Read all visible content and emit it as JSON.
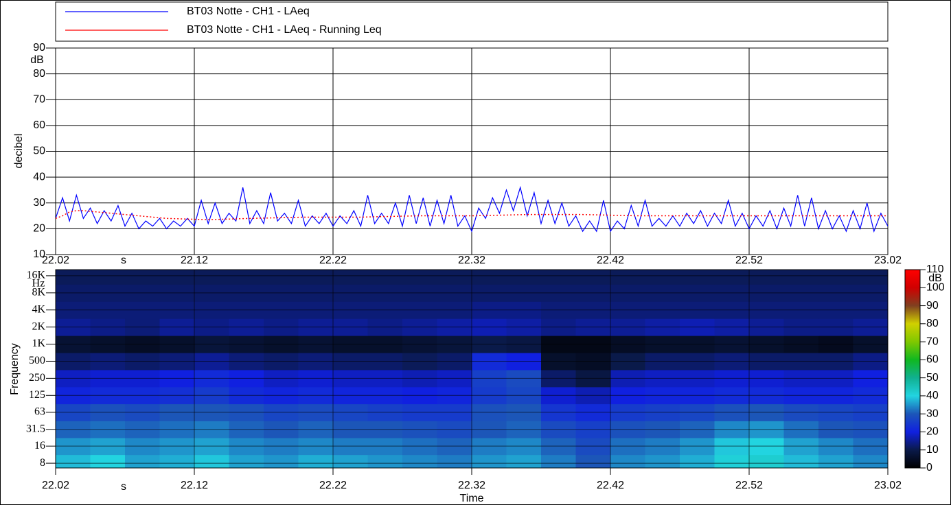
{
  "chart_data": [
    {
      "type": "line",
      "ylabel": "decibel",
      "y_unit": "dB",
      "x_unit": "s",
      "xlim": [
        1322,
        1382
      ],
      "xticks": [
        {
          "value": 1322,
          "label": "22.02"
        },
        {
          "value": 1332,
          "label": "22.12"
        },
        {
          "value": 1342,
          "label": "22.22"
        },
        {
          "value": 1352,
          "label": "22.32"
        },
        {
          "value": 1362,
          "label": "22.42"
        },
        {
          "value": 1372,
          "label": "22.52"
        },
        {
          "value": 1382,
          "label": "23.02"
        }
      ],
      "ylim": [
        10,
        90
      ],
      "yticks": [
        10,
        20,
        30,
        40,
        50,
        60,
        70,
        80,
        90
      ],
      "grid": true,
      "series": [
        {
          "name": "BT03 Notte - CH1 - LAeq",
          "color": "#0000ff",
          "style": "solid",
          "x": [
            1322,
            1322.5,
            1323,
            1323.5,
            1324,
            1324.5,
            1325,
            1325.5,
            1326,
            1326.5,
            1327,
            1327.5,
            1328,
            1328.5,
            1329,
            1329.5,
            1330,
            1330.5,
            1331,
            1331.5,
            1332,
            1332.5,
            1333,
            1333.5,
            1334,
            1334.5,
            1335,
            1335.5,
            1336,
            1336.5,
            1337,
            1337.5,
            1338,
            1338.5,
            1339,
            1339.5,
            1340,
            1340.5,
            1341,
            1341.5,
            1342,
            1342.5,
            1343,
            1343.5,
            1344,
            1344.5,
            1345,
            1345.5,
            1346,
            1346.5,
            1347,
            1347.5,
            1348,
            1348.5,
            1349,
            1349.5,
            1350,
            1350.5,
            1351,
            1351.5,
            1352,
            1352.5,
            1353,
            1353.5,
            1354,
            1354.5,
            1355,
            1355.5,
            1356,
            1356.5,
            1357,
            1357.5,
            1358,
            1358.5,
            1359,
            1359.5,
            1360,
            1360.5,
            1361,
            1361.5,
            1362,
            1362.5,
            1363,
            1363.5,
            1364,
            1364.5,
            1365,
            1365.5,
            1366,
            1366.5,
            1367,
            1367.5,
            1368,
            1368.5,
            1369,
            1369.5,
            1370,
            1370.5,
            1371,
            1371.5,
            1372,
            1372.5,
            1373,
            1373.5,
            1374,
            1374.5,
            1375,
            1375.5,
            1376,
            1376.5,
            1377,
            1377.5,
            1378,
            1378.5,
            1379,
            1379.5,
            1380,
            1380.5,
            1381,
            1381.5,
            1382
          ],
          "values": [
            24,
            32,
            23,
            33,
            24,
            28,
            22,
            27,
            23,
            29,
            21,
            26,
            20,
            23,
            21,
            24,
            20,
            23,
            21,
            24,
            21,
            31,
            22,
            30,
            22,
            26,
            23,
            36,
            22,
            27,
            22,
            34,
            23,
            26,
            22,
            31,
            21,
            25,
            22,
            26,
            21,
            25,
            22,
            27,
            21,
            33,
            22,
            26,
            22,
            30,
            21,
            33,
            22,
            32,
            21,
            31,
            22,
            33,
            21,
            25,
            19,
            28,
            24,
            32,
            26,
            35,
            27,
            36,
            25,
            34,
            22,
            31,
            22,
            30,
            21,
            25,
            19,
            23,
            19,
            31,
            19,
            23,
            20,
            29,
            21,
            31,
            21,
            24,
            21,
            25,
            21,
            26,
            22,
            27,
            21,
            26,
            22,
            31,
            21,
            26,
            20,
            25,
            21,
            27,
            20,
            28,
            21,
            33,
            21,
            32,
            20,
            27,
            20,
            25,
            19,
            27,
            20,
            30,
            19,
            26,
            21
          ]
        },
        {
          "name": "BT03 Notte - CH1 - LAeq - Running Leq",
          "color": "#ff0000",
          "style": "dotted",
          "x": [
            1322,
            1322.5,
            1323,
            1323.5,
            1324,
            1325,
            1326,
            1328,
            1330,
            1333,
            1336,
            1340,
            1344,
            1348,
            1352,
            1356,
            1360,
            1364,
            1370,
            1376,
            1382
          ],
          "values": [
            24,
            25,
            26.5,
            27,
            27,
            26.5,
            26,
            25,
            24,
            23.5,
            24,
            24.5,
            24.5,
            25,
            25,
            25.5,
            25.5,
            25,
            25,
            25,
            25
          ]
        }
      ]
    },
    {
      "type": "heatmap",
      "ylabel": "Frequency",
      "y_unit": "Hz",
      "xlabel": "Time",
      "x_unit": "s",
      "colorbar_unit": "dB",
      "xlim": [
        1322,
        1382
      ],
      "xticks": [
        {
          "value": 1322,
          "label": "22.02"
        },
        {
          "value": 1332,
          "label": "22.12"
        },
        {
          "value": 1342,
          "label": "22.22"
        },
        {
          "value": 1352,
          "label": "22.32"
        },
        {
          "value": 1362,
          "label": "22.42"
        },
        {
          "value": 1372,
          "label": "22.52"
        },
        {
          "value": 1382,
          "label": "23.02"
        }
      ],
      "yscale": "log",
      "ylim": [
        6.6,
        20500
      ],
      "yticks": [
        8,
        16,
        31.5,
        63,
        125,
        250,
        500,
        {
          "value": 1000,
          "label": "1K"
        },
        {
          "value": 2000,
          "label": "2K"
        },
        {
          "value": 4000,
          "label": "4K"
        },
        {
          "value": 8000,
          "label": "8K"
        },
        {
          "value": 16000,
          "label": "16K"
        }
      ],
      "clim": [
        0,
        110
      ],
      "cticks": [
        0,
        10,
        20,
        30,
        40,
        50,
        60,
        70,
        80,
        90,
        100,
        110
      ],
      "colormap": [
        "#000000",
        "#0a1a4a",
        "#1020e0",
        "#1c56b8",
        "#22d4e0",
        "#10b090",
        "#10b820",
        "#80c800",
        "#d0d000",
        "#804020",
        "#d00000",
        "#ff0000"
      ],
      "x_edges": [
        1322,
        1324.5,
        1327,
        1329.5,
        1332,
        1334.5,
        1337,
        1339.5,
        1342,
        1344.5,
        1347,
        1349.5,
        1352,
        1354.5,
        1357,
        1359.5,
        1362,
        1364.5,
        1367,
        1369.5,
        1372,
        1374.5,
        1377,
        1379.5,
        1382
      ],
      "frequencies": [
        8,
        16,
        31.5,
        63,
        125,
        250,
        500,
        1000,
        2000,
        4000,
        8000,
        16000
      ],
      "z": [
        [
          38,
          40,
          36,
          37,
          39,
          36,
          35,
          37,
          36,
          35,
          34,
          33,
          35,
          36,
          33,
          30,
          34,
          35,
          37,
          41,
          42,
          38,
          36,
          34
        ],
        [
          35,
          36,
          34,
          35,
          36,
          34,
          33,
          34,
          33,
          33,
          32,
          31,
          33,
          34,
          31,
          28,
          32,
          33,
          35,
          39,
          40,
          36,
          34,
          32
        ],
        [
          31,
          32,
          31,
          32,
          33,
          31,
          30,
          31,
          30,
          30,
          29,
          28,
          30,
          31,
          28,
          26,
          29,
          30,
          31,
          34,
          35,
          32,
          30,
          29
        ],
        [
          27,
          29,
          28,
          30,
          30,
          29,
          27,
          28,
          27,
          26,
          25,
          25,
          29,
          30,
          24,
          22,
          25,
          26,
          27,
          29,
          30,
          28,
          27,
          26
        ],
        [
          21,
          22,
          22,
          23,
          25,
          22,
          21,
          22,
          21,
          21,
          20,
          21,
          25,
          27,
          19,
          17,
          20,
          21,
          21,
          22,
          22,
          21,
          21,
          22
        ],
        [
          18,
          19,
          19,
          20,
          22,
          20,
          18,
          19,
          18,
          18,
          17,
          18,
          26,
          28,
          12,
          9,
          17,
          18,
          18,
          19,
          19,
          18,
          18,
          20
        ],
        [
          12,
          13,
          12,
          13,
          15,
          13,
          12,
          13,
          12,
          12,
          11,
          12,
          22,
          20,
          6,
          5,
          10,
          12,
          12,
          13,
          12,
          12,
          12,
          14
        ],
        [
          7,
          6,
          5,
          6,
          8,
          7,
          6,
          7,
          6,
          6,
          7,
          8,
          10,
          9,
          3,
          3,
          5,
          6,
          6,
          7,
          6,
          5,
          4,
          6
        ],
        [
          15,
          14,
          13,
          15,
          14,
          15,
          14,
          15,
          15,
          14,
          15,
          16,
          17,
          16,
          14,
          15,
          15,
          16,
          17,
          16,
          15,
          14,
          14,
          15
        ],
        [
          13,
          13,
          13,
          13,
          13,
          13,
          13,
          13,
          13,
          13,
          13,
          13,
          14,
          14,
          13,
          13,
          13,
          13,
          13,
          13,
          13,
          13,
          13,
          13
        ],
        [
          12,
          12,
          12,
          12,
          12,
          12,
          12,
          12,
          12,
          12,
          12,
          12,
          12,
          12,
          12,
          12,
          12,
          12,
          12,
          12,
          12,
          12,
          12,
          12
        ],
        [
          11,
          11,
          11,
          11,
          11,
          11,
          11,
          11,
          11,
          11,
          11,
          11,
          11,
          11,
          11,
          11,
          11,
          11,
          11,
          11,
          11,
          11,
          11,
          11
        ]
      ]
    }
  ]
}
